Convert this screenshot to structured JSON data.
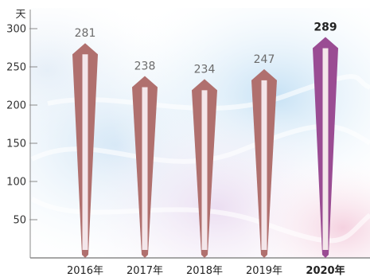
{
  "chart_data": {
    "type": "bar",
    "unit_label": "天",
    "categories": [
      "2016年",
      "2017年",
      "2018年",
      "2019年",
      "2020年"
    ],
    "values": [
      281,
      238,
      234,
      247,
      289
    ],
    "value_labels": [
      "281",
      "238",
      "234",
      "247",
      "289"
    ],
    "highlight_index": 4,
    "yticks": [
      300,
      250,
      200,
      150,
      100,
      50
    ],
    "ylim": [
      0,
      300
    ],
    "colors": {
      "bar": "#b0706e",
      "bar_highlight": "#9a4c93",
      "inner_stripe": "#f4e6ea",
      "axis": "#8a8a8a"
    }
  }
}
